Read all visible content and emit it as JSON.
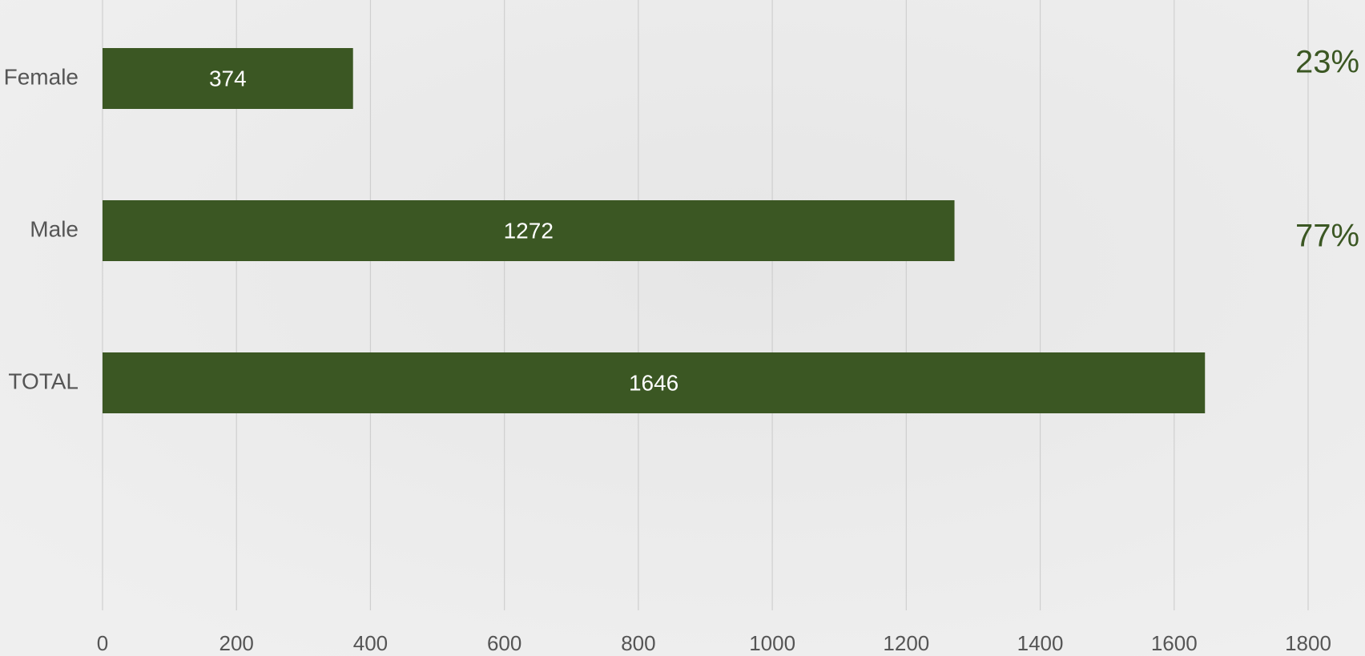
{
  "chart_data": {
    "type": "bar",
    "orientation": "horizontal",
    "categories": [
      "Female",
      "Male",
      "TOTAL"
    ],
    "values": [
      374,
      1272,
      1646
    ],
    "color": "#3b5723",
    "xlim": [
      0,
      1800
    ],
    "xticks": [
      0,
      200,
      400,
      600,
      800,
      1000,
      1200,
      1400,
      1600,
      1800
    ],
    "grid": true,
    "annotations": [
      "23%",
      "77%"
    ]
  }
}
